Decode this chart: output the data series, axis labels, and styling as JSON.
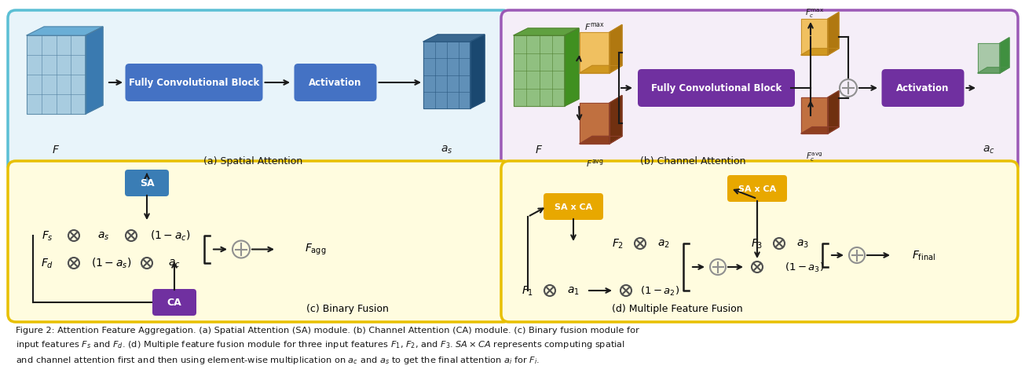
{
  "fig_width": 12.82,
  "fig_height": 4.21,
  "bg_color": "#ffffff",
  "panel_a_border": "#5bbfd4",
  "panel_a_bg": "#e8f4fa",
  "panel_b_border": "#9b59b6",
  "panel_b_bg": "#f5eef8",
  "panel_c_border": "#e8c000",
  "panel_c_bg": "#fffcdf",
  "panel_d_border": "#e8c000",
  "panel_d_bg": "#fffcdf",
  "fcb_blue": "#4472c4",
  "act_blue": "#4472c4",
  "fcb_purple": "#7030a0",
  "act_purple": "#7030a0",
  "sa_color": "#3a7db5",
  "ca_color": "#7030a0",
  "saxca_color": "#e8a800",
  "plus_color": "#909090",
  "times_color": "#505050",
  "arrow_color": "#1a1a1a",
  "text_color": "#1a1a1a",
  "caption": "Figure 2: Attention Feature Aggregation. (a) Spatial Attention (SA) module. (b) Channel Attention (CA) module. (c) Binary fusion module for\ninput features $F_s$ and $F_d$. (d) Multiple feature fusion module for three input features $F_1$, $F_2$, and $F_3$. $SA \\times CA$ represents computing spatial\nand channel attention first and then using element-wise multiplication on $a_c$ and $a_s$ to get the final attention $a_i$ for $F_i$."
}
